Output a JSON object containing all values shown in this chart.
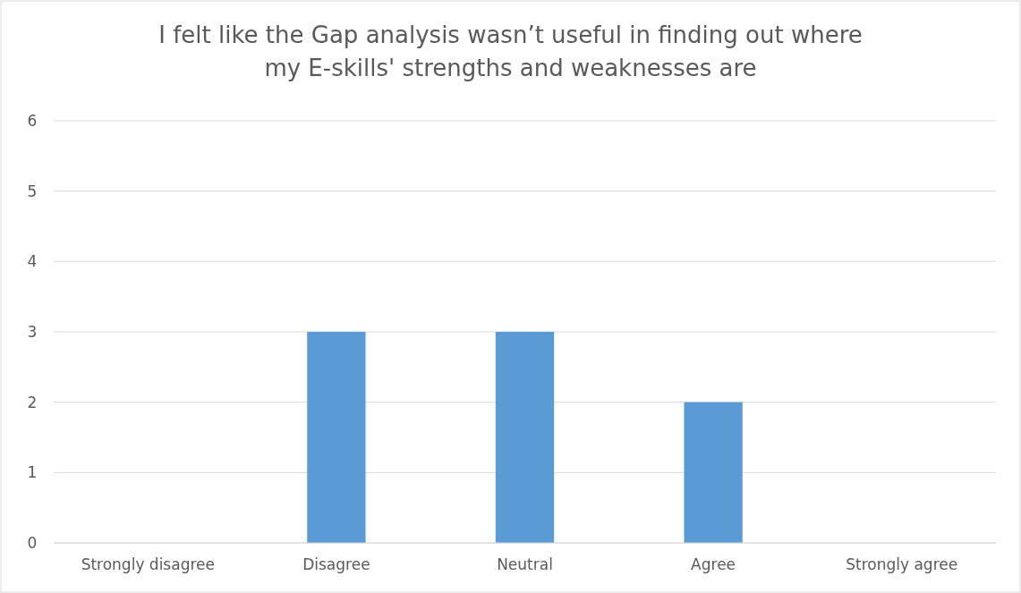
{
  "chart_data": {
    "type": "bar",
    "title": "I felt like the Gap analysis wasn’t useful in finding out where\nmy E-skills' strengths and weaknesses are",
    "categories": [
      "Strongly disagree",
      "Disagree",
      "Neutral",
      "Agree",
      "Strongly agree"
    ],
    "values": [
      0,
      3,
      3,
      2,
      0
    ],
    "color": "#5b9bd5",
    "ylim": [
      0,
      6
    ],
    "yticks": [
      0,
      1,
      2,
      3,
      4,
      5,
      6
    ],
    "grid": "y"
  }
}
